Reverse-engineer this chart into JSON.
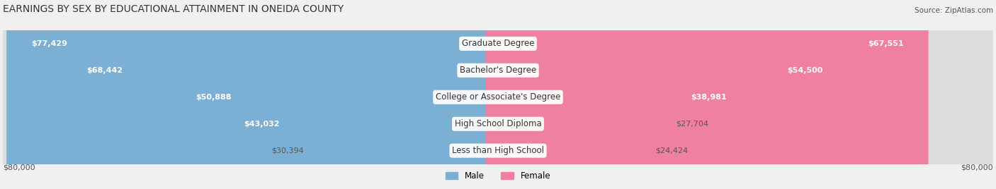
{
  "title": "EARNINGS BY SEX BY EDUCATIONAL ATTAINMENT IN ONEIDA COUNTY",
  "source": "Source: ZipAtlas.com",
  "categories": [
    "Less than High School",
    "High School Diploma",
    "College or Associate's Degree",
    "Bachelor's Degree",
    "Graduate Degree"
  ],
  "male_values": [
    30394,
    43032,
    50888,
    68442,
    77429
  ],
  "female_values": [
    24424,
    27704,
    38981,
    54500,
    67551
  ],
  "male_color": "#7bafd4",
  "female_color": "#f080a0",
  "max_value": 80000,
  "bar_height": 0.55,
  "background_color": "#f0f0f0",
  "row_colors": [
    "#e8e8e8",
    "#dcdcdc"
  ],
  "title_fontsize": 10,
  "label_fontsize": 8.5,
  "value_fontsize": 8,
  "axis_label": "$80,000"
}
